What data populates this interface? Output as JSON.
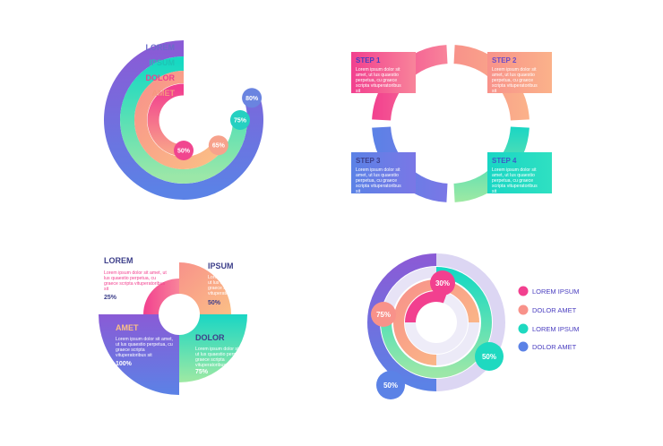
{
  "colors": {
    "pink": "#f2408f",
    "salmon": "#f8928a",
    "teal": "#1ed9c0",
    "blue": "#5b82e6",
    "purple": "#8a5bd6",
    "lavender": "#dcd6f3",
    "white": "#ffffff"
  },
  "body_text": "Lorem ipsum dolor sit amet, ut lus quaestio perpetua, cu graece scripta vituperatoribus sit",
  "chart1": {
    "legend": [
      {
        "label": "LOREM",
        "color": "#6a6cc9"
      },
      {
        "label": "IPSUM",
        "color": "#1fc4b4"
      },
      {
        "label": "DOLOR",
        "color": "#ee3e8e"
      },
      {
        "label": "AMET",
        "color": "#f5977f"
      }
    ],
    "values": [
      {
        "label": "80%",
        "value": 80
      },
      {
        "label": "75%",
        "value": 75
      },
      {
        "label": "65%",
        "value": 65
      },
      {
        "label": "50%",
        "value": 50
      }
    ]
  },
  "chart2": {
    "steps": [
      {
        "label": "STEP 1",
        "text": "Lorem ipsum dolor sit amet, ut lus quaestio perpetua, cu graece scripta vituperatoribus sit"
      },
      {
        "label": "STEP 2",
        "text": "Lorem ipsum dolor sit amet, ut lus quaestio perpetua, cu graece scripta vituperatoribus sit"
      },
      {
        "label": "STEP 3",
        "text": "Lorem ipsum dolor sit amet, ut lus quaestio perpetua, cu graece scripta vituperatoribus sit"
      },
      {
        "label": "STEP 4",
        "text": "Lorem ipsum dolor sit amet, ut lus quaestio perpetua, cu graece scripta vituperatoribus sit"
      }
    ]
  },
  "chart3": {
    "quadrants": [
      {
        "label": "LOREM",
        "value": 25,
        "pct": "25%",
        "text": "Lorem ipsum dolor sit amet, ut lus quaestio perpetua, cu graece scripta vituperatoribus sit"
      },
      {
        "label": "IPSUM",
        "value": 50,
        "pct": "50%",
        "text": "Lorem ipsum dolor sit amet, ut lus quaestio perpetua, cu graece scripta vituperatoribus sit"
      },
      {
        "label": "AMET",
        "value": 100,
        "pct": "100%",
        "text": "Lorem ipsum dolor sit amet, ut lus quaestio perpetua, cu graece scripta vituperatoribus sit"
      },
      {
        "label": "DOLOR",
        "value": 75,
        "pct": "75%",
        "text": "Lorem ipsum dolor sit amet, ut lus quaestio perpetua, cu graece scripta vituperatoribus sit"
      }
    ]
  },
  "chart4": {
    "legend": [
      {
        "label": "LOREM IPSUM",
        "color": "#f2408f"
      },
      {
        "label": "DOLOR AMET",
        "color": "#f8928a"
      },
      {
        "label": "LOREM IPSUM",
        "color": "#1ed9c0"
      },
      {
        "label": "DOLOR AMET",
        "color": "#5b82e6"
      }
    ],
    "values": [
      {
        "label": "30%",
        "value": 30
      },
      {
        "label": "75%",
        "value": 75
      },
      {
        "label": "50%",
        "value": 50
      },
      {
        "label": "50%",
        "value": 50
      }
    ]
  }
}
